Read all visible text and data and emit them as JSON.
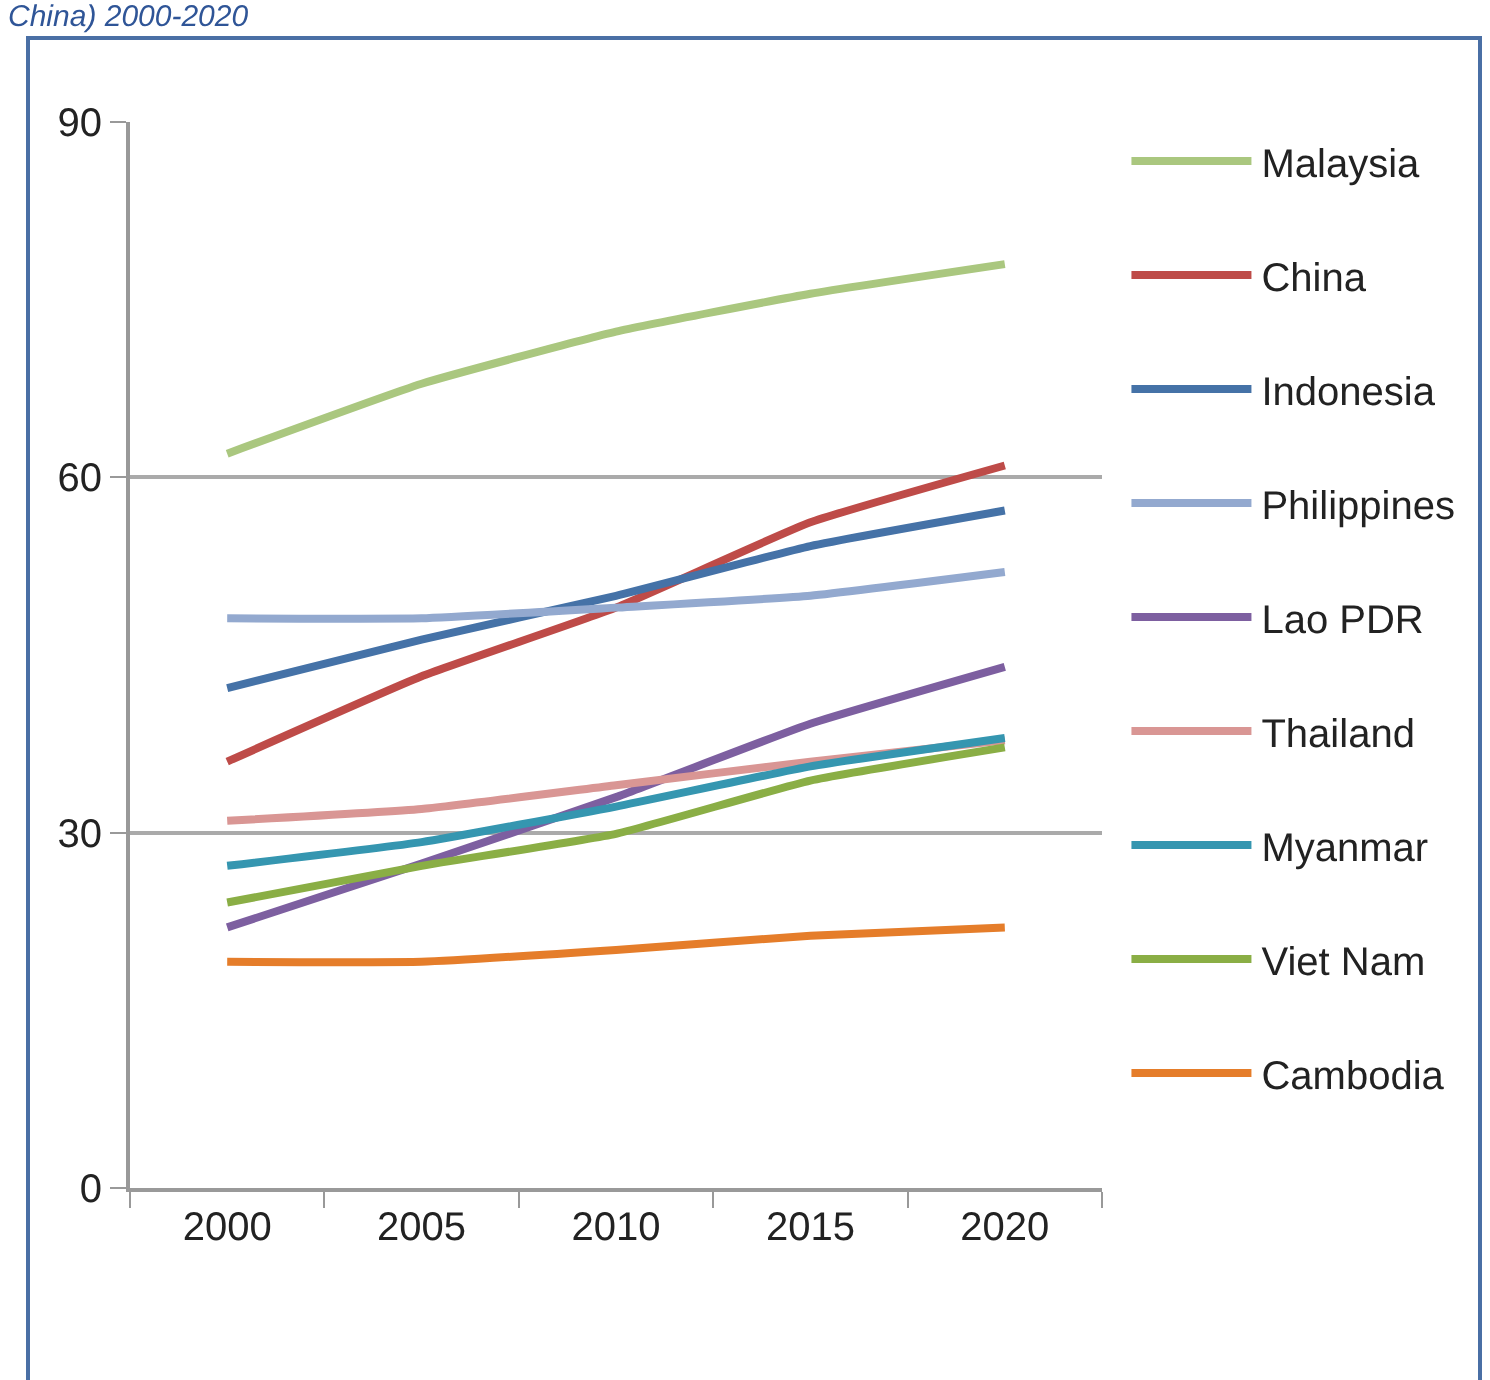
{
  "chart_data": {
    "type": "line",
    "title": "China) 2000-2020",
    "categories": [
      "2000",
      "2005",
      "2010",
      "2015",
      "2020"
    ],
    "series": [
      {
        "name": "Malaysia",
        "color": "#aac77f",
        "values": [
          62,
          67.9,
          72.3,
          75.5,
          78
        ]
      },
      {
        "name": "China",
        "color": "#be4b48",
        "values": [
          36,
          43.2,
          49,
          56.2,
          61
        ]
      },
      {
        "name": "Indonesia",
        "color": "#4572a7",
        "values": [
          42.2,
          46.3,
          50,
          54.2,
          57.2
        ]
      },
      {
        "name": "Philippines",
        "color": "#93a9cf",
        "values": [
          48.1,
          48.1,
          49,
          50,
          52
        ]
      },
      {
        "name": "Lao PDR",
        "color": "#7d5fa0",
        "values": [
          22,
          27.4,
          33,
          39.2,
          44
        ]
      },
      {
        "name": "Thailand",
        "color": "#d99694",
        "values": [
          31,
          32,
          34,
          36,
          37.8
        ]
      },
      {
        "name": "Myanmar",
        "color": "#3596b0",
        "values": [
          27.2,
          29.2,
          32.2,
          35.6,
          38
        ]
      },
      {
        "name": "Viet Nam",
        "color": "#8aae45",
        "values": [
          24.1,
          27.2,
          29.9,
          34.4,
          37.2
        ]
      },
      {
        "name": "Cambodia",
        "color": "#e57d2a",
        "values": [
          19.1,
          19.1,
          20.1,
          21.3,
          22
        ]
      }
    ],
    "ylim": [
      0,
      90
    ],
    "yticks": [
      0,
      30,
      60,
      90
    ],
    "grid": "y",
    "legend": "right",
    "marker": "none",
    "line_style": "solid"
  }
}
